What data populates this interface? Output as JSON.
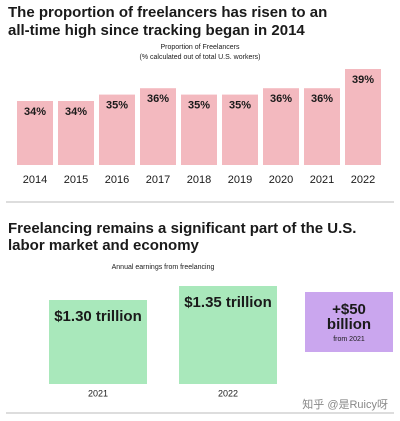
{
  "chart_data": [
    {
      "type": "bar",
      "title": [
        "The proportion of freelancers has risen to an",
        "all-time high since tracking began in 2014"
      ],
      "subtitle": [
        "Proportion of Freelancers",
        "(% calculated out of total U.S. workers)"
      ],
      "categories": [
        "2014",
        "2015",
        "2016",
        "2017",
        "2018",
        "2019",
        "2020",
        "2021",
        "2022"
      ],
      "values": [
        34,
        34,
        35,
        36,
        35,
        35,
        36,
        36,
        39
      ],
      "value_labels": [
        "34%",
        "34%",
        "35%",
        "36%",
        "35%",
        "35%",
        "36%",
        "36%",
        "39%"
      ],
      "color": "#f3b9bf",
      "ylim": [
        24,
        40
      ]
    },
    {
      "type": "bar",
      "title": [
        "Freelancing remains a significant part of the U.S.",
        "labor market and economy"
      ],
      "subtitle": [
        "Annual earnings from freelancing"
      ],
      "categories": [
        "2021",
        "2022"
      ],
      "values": [
        1.3,
        1.35
      ],
      "value_labels": [
        "$1.30 trillion",
        "$1.35 trillion"
      ],
      "color": "#a9e8bb",
      "ylim": [
        1.0,
        1.4
      ],
      "annotation": {
        "lines": [
          "+$50",
          "billion"
        ],
        "subtext": "from 2021",
        "color": "#caa6ee"
      }
    }
  ],
  "watermark": "知乎 @是Ruicy呀"
}
